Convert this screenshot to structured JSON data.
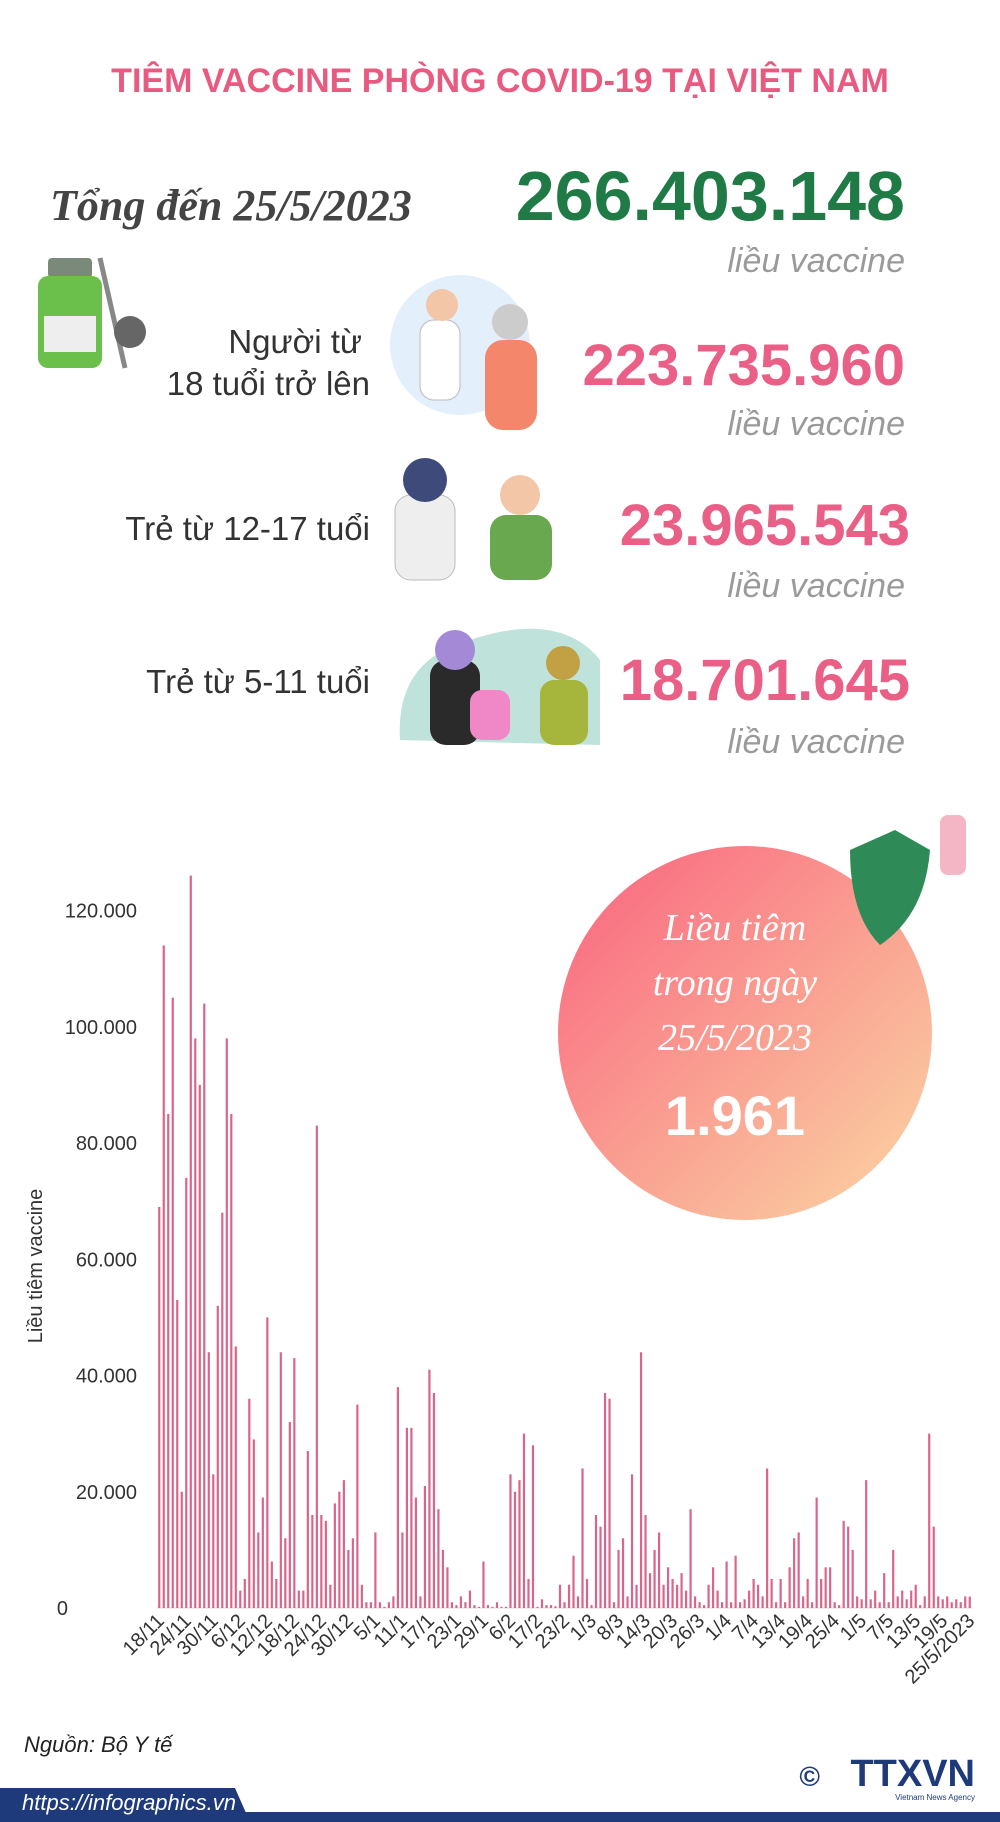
{
  "header": {
    "title": "TIÊM VACCINE PHÒNG COVID-19 TẠI VIỆT NAM"
  },
  "total": {
    "label": "Tổng đến 25/5/2023",
    "value": "266.403.148",
    "unit": "liều vaccine"
  },
  "groups": [
    {
      "label": "Người từ",
      "label2": "18 tuổi trở lên",
      "value": "223.735.960",
      "unit": "liều vaccine"
    },
    {
      "label": "Trẻ từ 12-17 tuổi",
      "value": "23.965.543",
      "unit": "liều vaccine"
    },
    {
      "label": "Trẻ từ 5-11 tuổi",
      "value": "18.701.645",
      "unit": "liều vaccine"
    }
  ],
  "daily": {
    "line1": "Liều tiêm",
    "line2": "trong ngày",
    "line3": "25/5/2023",
    "value": "1.961"
  },
  "chart_data": {
    "type": "bar",
    "y_label": "Liều tiêm vaccine",
    "color": "#d9668a",
    "ylim": [
      0,
      128000
    ],
    "yticks": [
      0,
      {
        "value": 20000,
        "label": "20.000"
      },
      {
        "value": 40000,
        "label": "40.000"
      },
      {
        "value": 60000,
        "label": "60.000"
      },
      {
        "value": 80000,
        "label": "80.000"
      },
      {
        "value": 100000,
        "label": "100.000"
      },
      {
        "value": 120000,
        "label": "120.000"
      }
    ],
    "categories": [
      "18/11",
      null,
      null,
      null,
      null,
      null,
      "24/11",
      null,
      null,
      null,
      null,
      null,
      "30/11",
      null,
      null,
      null,
      null,
      null,
      "6/12",
      null,
      null,
      null,
      null,
      null,
      "12/12",
      null,
      null,
      null,
      null,
      null,
      "18/12",
      null,
      null,
      null,
      null,
      null,
      "24/12",
      null,
      null,
      null,
      null,
      null,
      "30/12",
      null,
      null,
      null,
      null,
      null,
      "5/1",
      null,
      null,
      null,
      null,
      null,
      "11/1",
      null,
      null,
      null,
      null,
      null,
      "17/1",
      null,
      null,
      null,
      null,
      null,
      "23/1",
      null,
      null,
      null,
      null,
      null,
      "29/1",
      null,
      null,
      null,
      null,
      null,
      "6/2",
      null,
      null,
      null,
      null,
      null,
      "17/2",
      null,
      null,
      null,
      null,
      null,
      "23/2",
      null,
      null,
      null,
      null,
      null,
      "1/3",
      null,
      null,
      null,
      null,
      null,
      "8/3",
      null,
      null,
      null,
      null,
      null,
      "14/3",
      null,
      null,
      null,
      null,
      null,
      "20/3",
      null,
      null,
      null,
      null,
      null,
      "26/3",
      null,
      null,
      null,
      null,
      null,
      "1/4",
      null,
      null,
      null,
      null,
      null,
      "7/4",
      null,
      null,
      null,
      null,
      null,
      "13/4",
      null,
      null,
      null,
      null,
      null,
      "19/4",
      null,
      null,
      null,
      null,
      null,
      "25/4",
      null,
      null,
      null,
      null,
      null,
      "1/5",
      null,
      null,
      null,
      null,
      null,
      "7/5",
      null,
      null,
      null,
      null,
      null,
      "13/5",
      null,
      null,
      null,
      null,
      null,
      "19/5",
      null,
      null,
      null,
      null,
      null,
      "25/5/2023"
    ],
    "values": [
      69000,
      114000,
      85000,
      105000,
      53000,
      20000,
      74000,
      126000,
      98000,
      90000,
      104000,
      44000,
      23000,
      52000,
      68000,
      98000,
      85000,
      45000,
      3000,
      5000,
      36000,
      29000,
      13000,
      19000,
      50000,
      8000,
      5000,
      44000,
      12000,
      32000,
      43000,
      3000,
      3000,
      27000,
      16000,
      83000,
      16000,
      15000,
      4000,
      18000,
      20000,
      22000,
      10000,
      12000,
      35000,
      4000,
      1000,
      1000,
      13000,
      1000,
      200,
      1000,
      2000,
      38000,
      13000,
      31000,
      31000,
      19000,
      2000,
      21000,
      41000,
      37000,
      17000,
      10000,
      7000,
      1000,
      500,
      2000,
      1000,
      3000,
      500,
      200,
      8000,
      500,
      200,
      1000,
      200,
      200,
      23000,
      20000,
      22000,
      30000,
      5000,
      28000,
      200,
      1500,
      500,
      500,
      300,
      4000,
      1000,
      4000,
      9000,
      2000,
      24000,
      5000,
      500,
      16000,
      14000,
      37000,
      36000,
      1000,
      10000,
      12000,
      2000,
      23000,
      4000,
      44000,
      16000,
      6000,
      10000,
      13000,
      4000,
      7000,
      5000,
      4000,
      6000,
      3000,
      17000,
      2000,
      1000,
      500,
      4000,
      7000,
      3000,
      1000,
      8000,
      1000,
      9000,
      1000,
      1500,
      3000,
      5000,
      4000,
      2000,
      24000,
      5000,
      1000,
      5000,
      1000,
      7000,
      12000,
      13000,
      2000,
      5000,
      1000,
      19000,
      5000,
      7000,
      7000,
      1000,
      500,
      15000,
      14000,
      10000,
      2000,
      1500,
      22000,
      1500,
      3000,
      1000,
      6000,
      1000,
      10000,
      2000,
      3000,
      1500,
      3000,
      4000,
      500,
      2000,
      30000,
      14000,
      2000,
      1500,
      2000,
      1000,
      1500,
      1000,
      2000,
      1961
    ]
  },
  "footer": {
    "source": "Nguồn: Bộ Y tế",
    "url": "https://infographics.vn",
    "copyright": "©",
    "logo": "TTXVN",
    "logo_sub": "Vietnam News Agency"
  }
}
